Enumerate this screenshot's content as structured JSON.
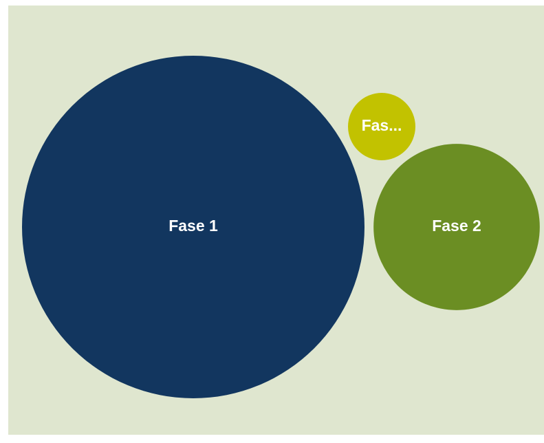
{
  "chart_data": {
    "type": "bubble",
    "categories": [
      "Fase 1",
      "Fase 2",
      "Fas..."
    ],
    "values": [
      62,
      14.6,
      2.4
    ],
    "colors": [
      "#12365f",
      "#6b8e23",
      "#c2c200"
    ]
  }
}
